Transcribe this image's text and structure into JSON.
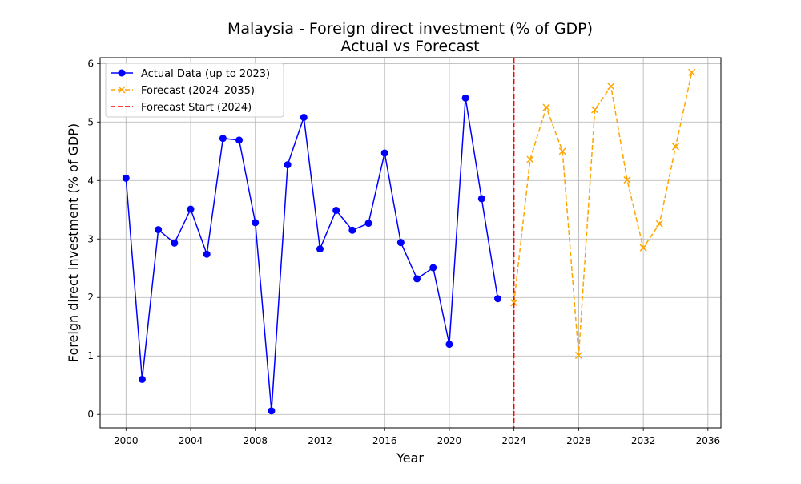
{
  "chart_data": {
    "type": "line",
    "title": "Malaysia - Foreign direct investment (% of GDP)",
    "subtitle": "Actual vs Forecast",
    "xlabel": "Year",
    "ylabel": "Foreign direct investment (% of GDP)",
    "xlim": [
      1998.4,
      2036.8
    ],
    "ylim": [
      -0.23,
      6.1
    ],
    "x_ticks": [
      2000,
      2004,
      2008,
      2012,
      2016,
      2020,
      2024,
      2028,
      2032,
      2036
    ],
    "y_ticks": [
      0,
      1,
      2,
      3,
      4,
      5,
      6
    ],
    "grid": true,
    "legend_position": "top-left",
    "series": [
      {
        "name": "Actual Data (up to 2023)",
        "color": "#0000ff",
        "style": "solid",
        "marker": "circle",
        "x": [
          2000,
          2001,
          2002,
          2003,
          2004,
          2005,
          2006,
          2007,
          2008,
          2009,
          2010,
          2011,
          2012,
          2013,
          2014,
          2015,
          2016,
          2017,
          2018,
          2019,
          2020,
          2021,
          2022,
          2023
        ],
        "values": [
          4.04,
          0.6,
          3.16,
          2.93,
          3.51,
          2.74,
          4.72,
          4.69,
          3.28,
          0.06,
          4.27,
          5.08,
          2.83,
          3.49,
          3.15,
          3.27,
          4.47,
          2.94,
          2.32,
          2.51,
          1.2,
          5.41,
          3.69,
          1.98
        ]
      },
      {
        "name": "Forecast (2024–2035)",
        "color": "#ffa500",
        "style": "dashed",
        "marker": "x",
        "x": [
          2024,
          2025,
          2026,
          2027,
          2028,
          2029,
          2030,
          2031,
          2032,
          2033,
          2034,
          2035
        ],
        "values": [
          1.91,
          4.36,
          5.25,
          4.5,
          1.01,
          5.21,
          5.61,
          4.01,
          2.85,
          3.26,
          4.58,
          5.85
        ]
      }
    ],
    "vline": {
      "name": "Forecast Start (2024)",
      "x": 2024,
      "color": "#ff0000",
      "style": "dashed"
    }
  }
}
